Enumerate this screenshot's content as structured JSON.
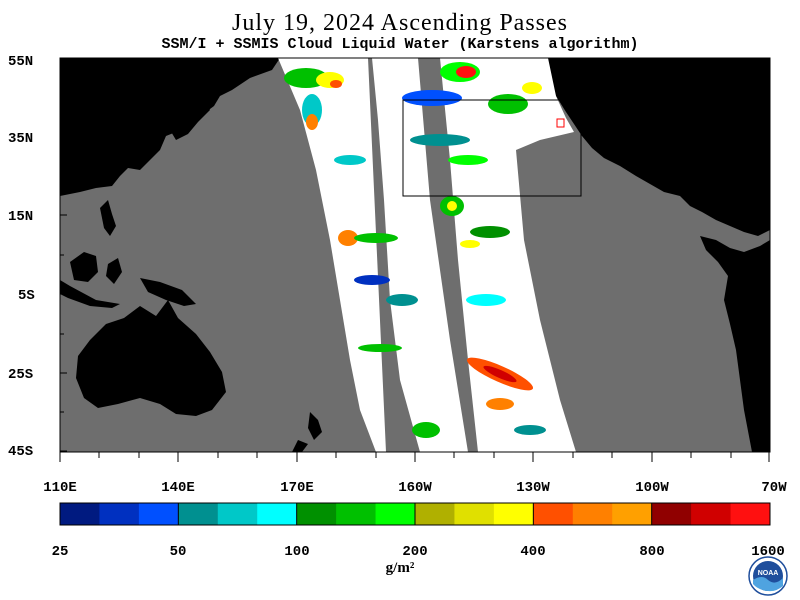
{
  "title": "July 19, 2024  Ascending Passes",
  "subtitle": "SSM/I + SSMIS Cloud Liquid Water (Karstens algorithm)",
  "map": {
    "lat_labels": [
      "55N",
      "35N",
      "15N",
      "5S",
      "25S",
      "45S"
    ],
    "lon_labels": [
      "110E",
      "140E",
      "170E",
      "160W",
      "130W",
      "100W",
      "70W"
    ],
    "colors": {
      "ocean": "#6e6e6e",
      "land": "#000000",
      "swath": "#ffffff"
    }
  },
  "colorbar": {
    "colors": [
      "#001a80",
      "#0030c0",
      "#0050ff",
      "#009090",
      "#00c8c8",
      "#00ffff",
      "#009000",
      "#00c000",
      "#00ff00",
      "#b0b000",
      "#e0e000",
      "#ffff00",
      "#ff5000",
      "#ff8000",
      "#ffa000",
      "#900000",
      "#d00000",
      "#ff1010"
    ],
    "tick_labels": [
      "25",
      "50",
      "100",
      "200",
      "400",
      "800",
      "1600"
    ],
    "unit": "g/m²"
  },
  "logo": {
    "name": "noaa-logo",
    "text": "NOAA"
  }
}
